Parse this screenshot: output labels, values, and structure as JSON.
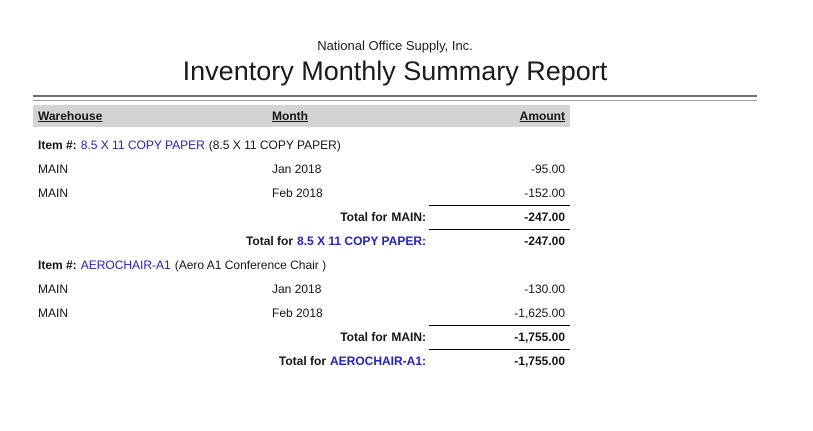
{
  "page": {
    "company_name": "National Office Supply, Inc.",
    "report_title": "Inventory Monthly Summary Report",
    "colors": {
      "link_blue": "#2222CC",
      "header_band_gray": "#D3D3D3",
      "rule_dark_gray": "#6F6F6F",
      "rule_light_gray": "#9C9C9C"
    },
    "table": {
      "headers": {
        "warehouse": "Warehouse",
        "month": "Month",
        "amount": "Amount"
      },
      "items": [
        {
          "label": "Item #:",
          "number": "8.5 X 11 COPY PAPER",
          "description": "(8.5 X 11 COPY PAPER)",
          "rows": [
            {
              "warehouse": "MAIN",
              "month": "Jan 2018",
              "amount": "-95.00"
            },
            {
              "warehouse": "MAIN",
              "month": "Feb 2018",
              "amount": "-152.00"
            }
          ],
          "totals": [
            {
              "prefix": "Total for",
              "subject": "MAIN:",
              "subject_is_link": false,
              "amount": "-247.00"
            },
            {
              "prefix": "Total for",
              "subject": "8.5 X 11 COPY PAPER:",
              "subject_is_link": true,
              "amount": "-247.00"
            }
          ]
        },
        {
          "label": "Item #:",
          "number": "AEROCHAIR-A1",
          "description": "(Aero A1 Conference Chair )",
          "rows": [
            {
              "warehouse": "MAIN",
              "month": "Jan 2018",
              "amount": "-130.00"
            },
            {
              "warehouse": "MAIN",
              "month": "Feb 2018",
              "amount": "-1,625.00"
            }
          ],
          "totals": [
            {
              "prefix": "Total for",
              "subject": "MAIN:",
              "subject_is_link": false,
              "amount": "-1,755.00"
            },
            {
              "prefix": "Total for",
              "subject": "AEROCHAIR-A1:",
              "subject_is_link": true,
              "amount": "-1,755.00"
            }
          ]
        }
      ]
    }
  }
}
